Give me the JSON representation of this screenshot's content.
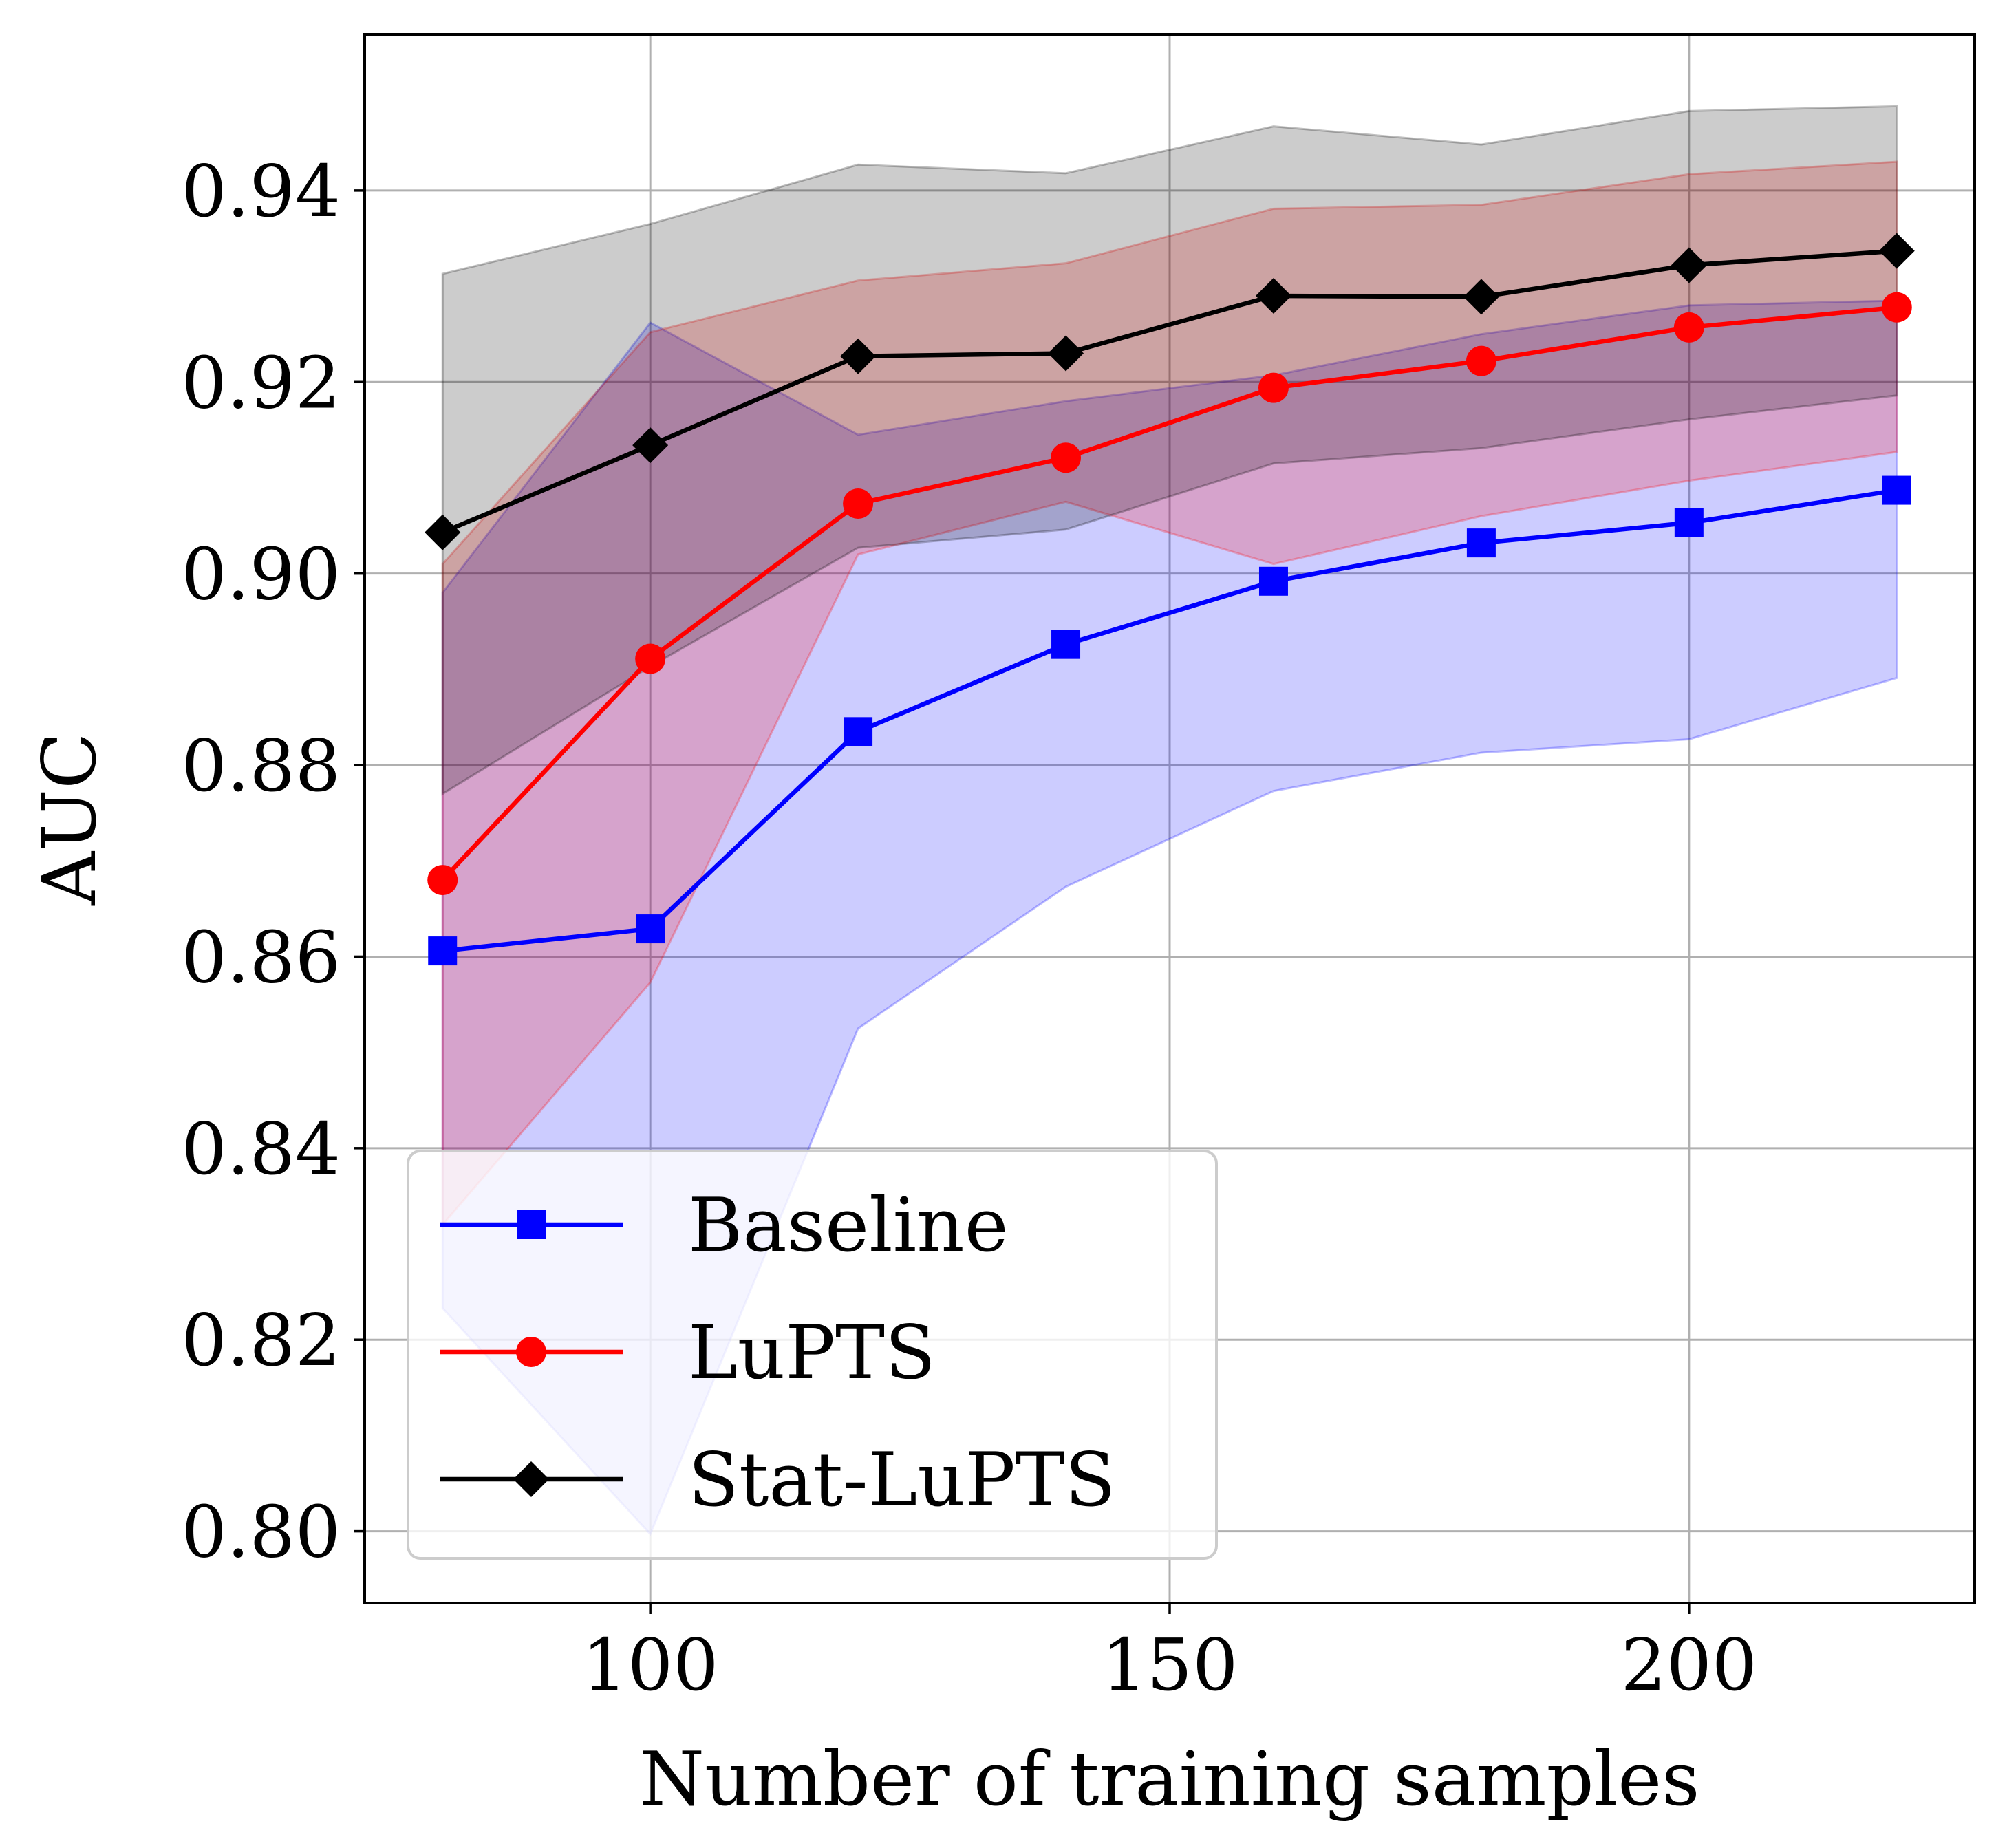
{
  "chart_data": {
    "type": "line",
    "xlabel": "Number of training samples",
    "ylabel": "AUC",
    "xlim": [
      72.5,
      227.5
    ],
    "ylim": [
      0.7925,
      0.9563
    ],
    "xticks": [
      100,
      150,
      200
    ],
    "xtick_labels": [
      "100",
      "150",
      "200"
    ],
    "yticks": [
      0.8,
      0.82,
      0.84,
      0.86,
      0.88,
      0.9,
      0.92,
      0.94
    ],
    "ytick_labels": [
      "0.80",
      "0.82",
      "0.84",
      "0.86",
      "0.88",
      "0.90",
      "0.92",
      "0.94"
    ],
    "grid": true,
    "legend_position": "lower-left",
    "x": [
      80,
      100,
      120,
      140,
      160,
      180,
      200,
      220
    ],
    "series": [
      {
        "name": "Baseline",
        "color": "#0000ff",
        "marker": "square",
        "values": [
          0.8606,
          0.8629,
          0.8835,
          0.8926,
          0.8992,
          0.9032,
          0.9053,
          0.9087
        ],
        "band_upper": [
          0.898,
          0.9262,
          0.9145,
          0.918,
          0.9207,
          0.925,
          0.928,
          0.9285
        ],
        "band_lower": [
          0.8233,
          0.7997,
          0.8525,
          0.8673,
          0.8773,
          0.8813,
          0.8827,
          0.8891
        ]
      },
      {
        "name": "LuPTS",
        "color": "#ff0000",
        "marker": "circle",
        "values": [
          0.868,
          0.8911,
          0.9073,
          0.9121,
          0.9194,
          0.9222,
          0.9257,
          0.9278
        ],
        "band_upper": [
          0.901,
          0.9252,
          0.9306,
          0.9324,
          0.9381,
          0.9385,
          0.9417,
          0.943
        ],
        "band_lower": [
          0.832,
          0.8573,
          0.902,
          0.9075,
          0.901,
          0.906,
          0.9097,
          0.9127
        ]
      },
      {
        "name": "Stat-LuPTS",
        "color": "#000000",
        "marker": "diamond",
        "values": [
          0.9043,
          0.9134,
          0.9227,
          0.923,
          0.929,
          0.9289,
          0.9322,
          0.9337
        ],
        "band_upper": [
          0.9313,
          0.9365,
          0.9427,
          0.9418,
          0.9467,
          0.9448,
          0.9483,
          0.9488
        ],
        "band_lower": [
          0.877,
          0.8903,
          0.9027,
          0.9046,
          0.9115,
          0.9131,
          0.9161,
          0.9186
        ]
      }
    ]
  }
}
